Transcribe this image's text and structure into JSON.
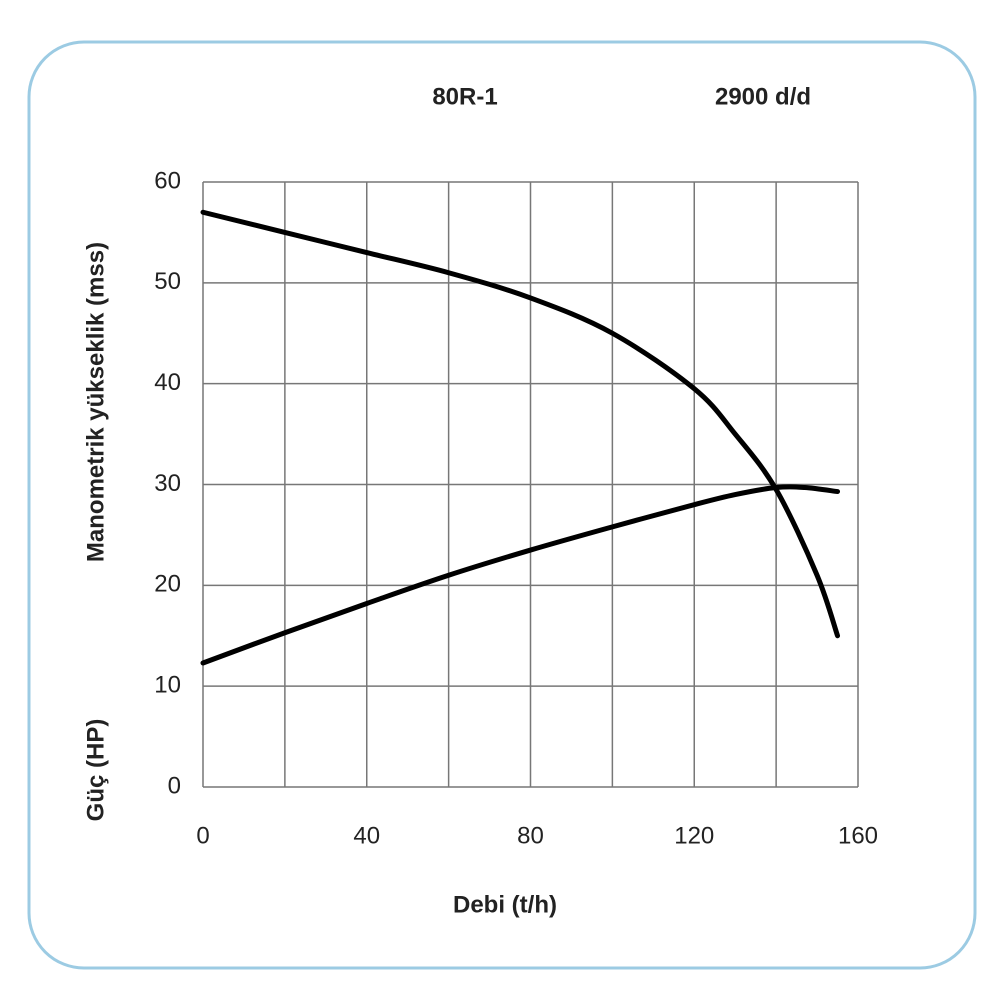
{
  "chart_data": {
    "type": "line",
    "title": "80R-1",
    "subtitle": "2900 d/d",
    "xlabel": "Debi (t/h)",
    "ylabel": "Manometrik yükseklik (mss)",
    "y2label": "Güç (HP)",
    "series": [
      {
        "color": "#000000",
        "x": [
          0,
          20,
          40,
          60,
          80,
          100,
          120,
          130,
          140,
          150,
          155
        ],
        "values": [
          57,
          55,
          53,
          51,
          48.5,
          45,
          39.5,
          35,
          29.5,
          21,
          15
        ]
      },
      {
        "color": "#000000",
        "x": [
          0,
          20,
          40,
          60,
          80,
          100,
          120,
          130,
          140,
          147,
          155
        ],
        "values": [
          12.3,
          15.3,
          18.2,
          21,
          23.5,
          25.8,
          28,
          29,
          29.7,
          29.7,
          29.3
        ]
      }
    ],
    "xlim": [
      0,
      160
    ],
    "xticks": [
      0,
      40,
      80,
      120,
      160
    ],
    "x_minor_ticks": [
      20,
      60,
      100,
      140
    ],
    "ylim": [
      0,
      60
    ],
    "yticks": [
      0,
      10,
      20,
      30,
      40,
      50,
      60
    ],
    "grid": true
  }
}
